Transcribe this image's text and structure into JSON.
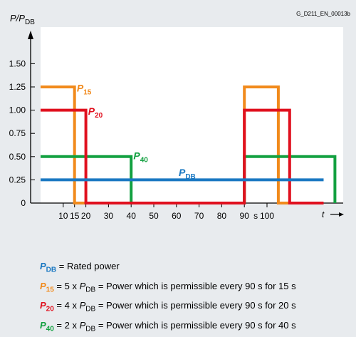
{
  "doc_id": "G_D211_EN_00013b",
  "colors": {
    "p15": "#f18a1c",
    "p20": "#e0101e",
    "p40": "#12a040",
    "pdb": "#1a78c2",
    "axis": "#000000",
    "plot_bg": "#ffffff",
    "page_bg": "#e8ebee"
  },
  "chart_data": {
    "type": "line",
    "ylabel": {
      "base": "P/P",
      "sub": "DB"
    },
    "xlabel": "t",
    "x_unit_label": "s",
    "xlim": [
      0,
      125
    ],
    "ylim": [
      0,
      1.6
    ],
    "x_ticks": [
      {
        "value": 10,
        "label": "10"
      },
      {
        "value": 15,
        "label": "15"
      },
      {
        "value": 20,
        "label": "20"
      },
      {
        "value": 30,
        "label": "30"
      },
      {
        "value": 40,
        "label": "40"
      },
      {
        "value": 50,
        "label": "50"
      },
      {
        "value": 60,
        "label": "60"
      },
      {
        "value": 70,
        "label": "70"
      },
      {
        "value": 80,
        "label": "80"
      },
      {
        "value": 90,
        "label": "90"
      },
      {
        "value": 100,
        "label": "100"
      }
    ],
    "y_ticks": [
      {
        "value": 0,
        "label": "0"
      },
      {
        "value": 0.25,
        "label": "0.25"
      },
      {
        "value": 0.5,
        "label": "0.50"
      },
      {
        "value": 0.75,
        "label": "0.75"
      },
      {
        "value": 1.0,
        "label": "1.00"
      },
      {
        "value": 1.25,
        "label": "1.25"
      },
      {
        "value": 1.5,
        "label": "1.50"
      }
    ],
    "series": [
      {
        "key": "p15",
        "base": "P",
        "sub": "15",
        "color": "#f18a1c",
        "label_at": {
          "x": 16,
          "y": 1.2
        },
        "points": [
          [
            0,
            1.25
          ],
          [
            15,
            1.25
          ],
          [
            15,
            0
          ],
          [
            90,
            0
          ],
          [
            90,
            1.25
          ],
          [
            105,
            1.25
          ],
          [
            105,
            0
          ],
          [
            125,
            0
          ]
        ]
      },
      {
        "key": "p40",
        "base": "P",
        "sub": "40",
        "color": "#12a040",
        "label_at": {
          "x": 41,
          "y": 0.47
        },
        "points": [
          [
            0,
            0.5
          ],
          [
            40,
            0.5
          ],
          [
            40,
            0
          ],
          [
            90,
            0
          ],
          [
            90,
            0.5
          ],
          [
            130,
            0.5
          ],
          [
            130,
            0
          ]
        ]
      },
      {
        "key": "p20",
        "base": "P",
        "sub": "20",
        "color": "#e0101e",
        "label_at": {
          "x": 21,
          "y": 0.95
        },
        "points": [
          [
            0,
            1.0
          ],
          [
            20,
            1.0
          ],
          [
            20,
            0
          ],
          [
            90,
            0
          ],
          [
            90,
            1.0
          ],
          [
            110,
            1.0
          ],
          [
            110,
            0
          ],
          [
            125,
            0
          ]
        ]
      },
      {
        "key": "pdb",
        "base": "P",
        "sub": "DB",
        "color": "#1a78c2",
        "label_at": {
          "x": 61,
          "y": 0.29
        },
        "points": [
          [
            0,
            0.25
          ],
          [
            125,
            0.25
          ]
        ]
      }
    ]
  },
  "legend": [
    {
      "key": "pdb",
      "sym": "P",
      "sub": "DB",
      "mult": "",
      "mult_sym": "",
      "mult_sub": "",
      "text": "Rated power"
    },
    {
      "key": "p15",
      "sym": "P",
      "sub": "15",
      "mult": "5 x",
      "mult_sym": "P",
      "mult_sub": "DB",
      "text": "Power which is permissible every 90 s for 15 s"
    },
    {
      "key": "p20",
      "sym": "P",
      "sub": "20",
      "mult": "4 x",
      "mult_sym": "P",
      "mult_sub": "DB",
      "text": "Power which is permissible every 90 s for 20 s"
    },
    {
      "key": "p40",
      "sym": "P",
      "sub": "40",
      "mult": "2 x",
      "mult_sym": "P",
      "mult_sub": "DB",
      "text": "Power which is permissible every 90 s for 40 s"
    }
  ]
}
